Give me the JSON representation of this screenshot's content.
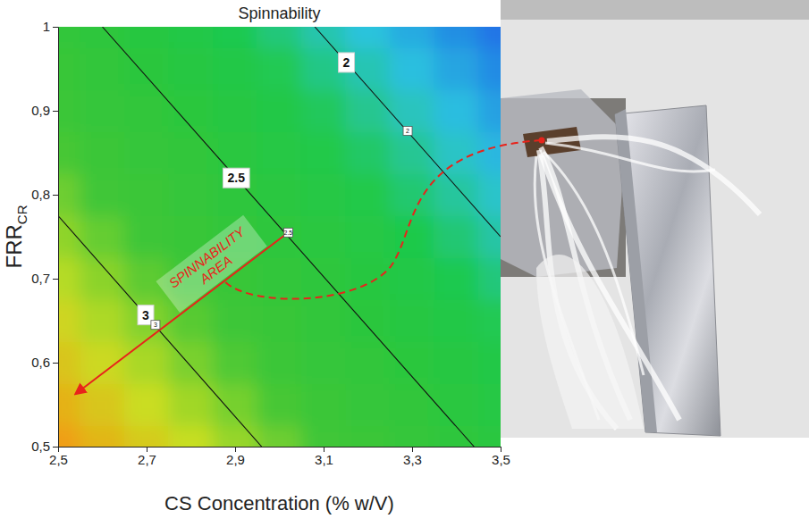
{
  "chart_data": {
    "type": "contour",
    "title": "Spinnability",
    "xlabel": "CS Concentration (% w/V)",
    "ylabel": {
      "text": "FRR",
      "subscript": "CR"
    },
    "xlim": [
      2.5,
      3.5
    ],
    "ylim": [
      0.5,
      1
    ],
    "xticks": [
      {
        "value": 2.5,
        "label": "2,5"
      },
      {
        "value": 2.7,
        "label": "2,7"
      },
      {
        "value": 2.9,
        "label": "2,9"
      },
      {
        "value": 3.1,
        "label": "3,1"
      },
      {
        "value": 3.3,
        "label": "3,3"
      },
      {
        "value": 3.5,
        "label": "3,5"
      }
    ],
    "yticks": [
      {
        "value": 0.5,
        "label": "0,5"
      },
      {
        "value": 0.6,
        "label": "0,6"
      },
      {
        "value": 0.7,
        "label": "0,7"
      },
      {
        "value": 0.8,
        "label": "0,8"
      },
      {
        "value": 0.9,
        "label": "0,9"
      },
      1
    ],
    "grid": false,
    "heatmap": {
      "x": [
        2.5,
        2.6,
        2.7,
        2.8,
        2.9,
        3.0,
        3.1,
        3.2,
        3.3,
        3.4,
        3.5
      ],
      "y": [
        0.5,
        0.55,
        0.6,
        0.65,
        0.7,
        0.75,
        0.8,
        0.85,
        0.9,
        0.95,
        1.0
      ],
      "z": [
        [
          3.48,
          3.37,
          3.27,
          3.17,
          3.06,
          2.96,
          2.85,
          2.75,
          2.65,
          2.54,
          2.44
        ],
        [
          3.39,
          3.29,
          3.18,
          3.08,
          2.98,
          2.87,
          2.77,
          2.66,
          2.56,
          2.46,
          2.35
        ],
        [
          3.3,
          3.2,
          3.1,
          2.99,
          2.89,
          2.78,
          2.68,
          2.58,
          2.47,
          2.37,
          2.26
        ],
        [
          3.22,
          3.11,
          3.01,
          2.91,
          2.8,
          2.7,
          2.59,
          2.49,
          2.39,
          2.28,
          2.18
        ],
        [
          3.13,
          3.03,
          2.92,
          2.82,
          2.71,
          2.61,
          2.51,
          2.4,
          2.3,
          2.19,
          2.09
        ],
        [
          3.04,
          2.94,
          2.84,
          2.73,
          2.63,
          2.52,
          2.42,
          2.32,
          2.21,
          2.11,
          2.0
        ],
        [
          2.96,
          2.85,
          2.75,
          2.64,
          2.54,
          2.44,
          2.33,
          2.23,
          2.12,
          2.02,
          1.92
        ],
        [
          2.87,
          2.77,
          2.66,
          2.56,
          2.45,
          2.35,
          2.25,
          2.14,
          2.04,
          1.93,
          1.83
        ],
        [
          2.78,
          2.68,
          2.57,
          2.47,
          2.37,
          2.26,
          2.16,
          2.05,
          1.95,
          1.85,
          1.74
        ],
        [
          2.7,
          2.59,
          2.49,
          2.38,
          2.28,
          2.18,
          2.07,
          1.97,
          1.86,
          1.76,
          1.66
        ],
        [
          2.61,
          2.5,
          2.4,
          2.3,
          2.19,
          2.09,
          1.98,
          1.88,
          1.78,
          1.67,
          1.57
        ]
      ],
      "zlim": [
        1.55,
        3.5
      ],
      "colorscale": [
        "#1f6fe6",
        "#2cc3df",
        "#1fc94a",
        "#2ec63c",
        "#3fc637",
        "#c9de22",
        "#f39a12"
      ]
    },
    "contours": [
      {
        "level": 2,
        "x": [
          3.08,
          3.5
        ],
        "y": [
          1,
          0.75
        ]
      },
      {
        "level": 2.5,
        "x": [
          2.6,
          3.44
        ],
        "y": [
          1,
          0.5
        ]
      },
      {
        "level": 3,
        "x": [
          2.5,
          2.96
        ],
        "y": [
          0.775,
          0.5
        ]
      }
    ],
    "flags": [
      {
        "level": 2,
        "x": 3.29,
        "y": 0.876
      },
      {
        "level": 2.5,
        "x": 3.02,
        "y": 0.755
      },
      {
        "level": 3,
        "x": 2.72,
        "y": 0.645
      }
    ],
    "annotation": {
      "text": [
        "SPINNABILITY",
        "AREA"
      ],
      "color": "#e8231b",
      "x": [
        3.02,
        2.54
      ],
      "y": [
        0.755,
        0.563
      ]
    }
  }
}
